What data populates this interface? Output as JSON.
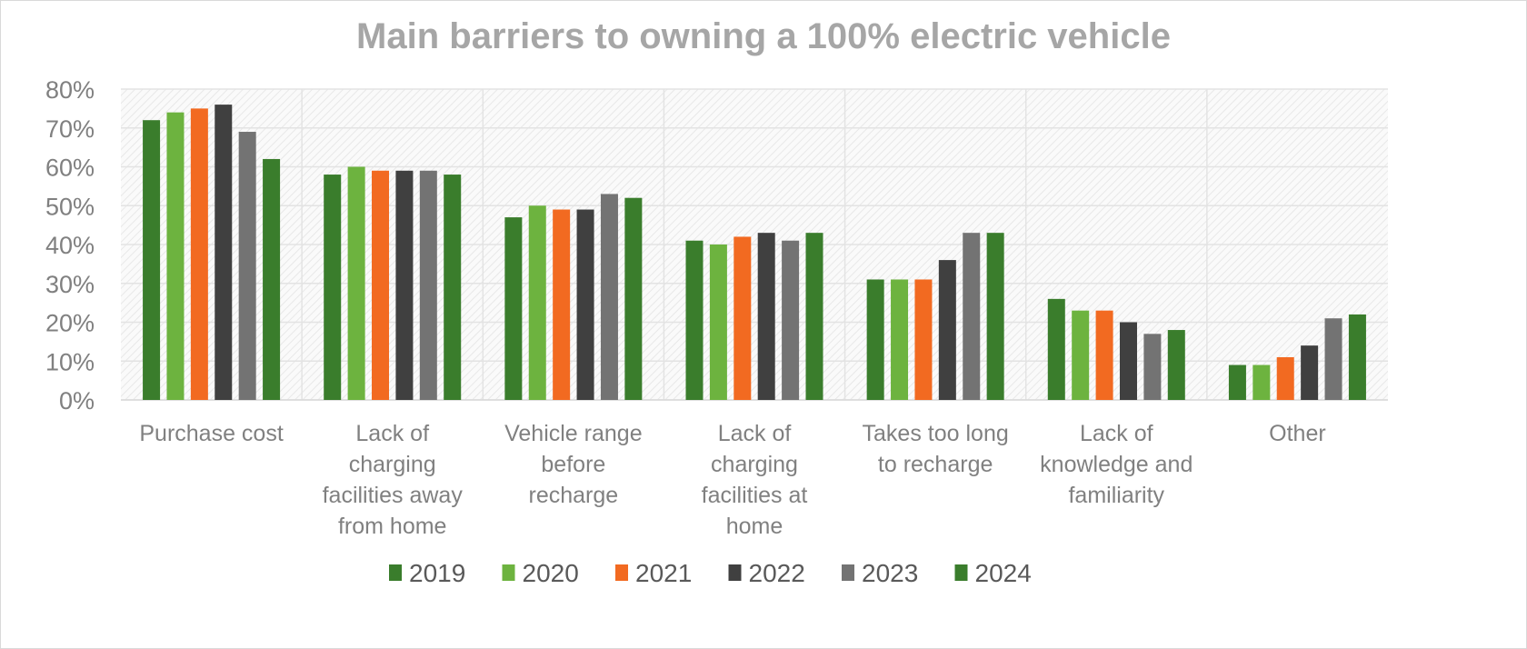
{
  "chart_data": {
    "type": "bar",
    "title": "Main barriers to owning a 100% electric vehicle",
    "xlabel": "",
    "ylabel": "",
    "ylim": [
      0,
      80
    ],
    "yticks": [
      0,
      10,
      20,
      30,
      40,
      50,
      60,
      70,
      80
    ],
    "ytick_labels": [
      "0%",
      "10%",
      "20%",
      "30%",
      "40%",
      "50%",
      "60%",
      "70%",
      "80%"
    ],
    "grid": true,
    "legend_position": "bottom",
    "categories": [
      [
        "Purchase cost"
      ],
      [
        "Lack of",
        "charging",
        "facilities away",
        "from home"
      ],
      [
        "Vehicle range",
        "before",
        "recharge"
      ],
      [
        "Lack of",
        "charging",
        "facilities at",
        "home"
      ],
      [
        "Takes too long",
        "to recharge"
      ],
      [
        "Lack of",
        "knowledge and",
        "familiarity"
      ],
      [
        "Other"
      ]
    ],
    "series": [
      {
        "name": "2019",
        "color": "#3a7d2c",
        "values": [
          72,
          58,
          47,
          41,
          31,
          26,
          9
        ]
      },
      {
        "name": "2020",
        "color": "#6db33f",
        "values": [
          74,
          60,
          50,
          40,
          31,
          23,
          9
        ]
      },
      {
        "name": "2021",
        "color": "#f26a21",
        "values": [
          75,
          59,
          49,
          42,
          31,
          23,
          11
        ]
      },
      {
        "name": "2022",
        "color": "#404040",
        "values": [
          76,
          59,
          49,
          43,
          36,
          20,
          14
        ]
      },
      {
        "name": "2023",
        "color": "#737373",
        "values": [
          69,
          59,
          53,
          41,
          43,
          17,
          21
        ]
      },
      {
        "name": "2024",
        "color": "#3a7d2c",
        "values": [
          62,
          58,
          52,
          43,
          43,
          18,
          22
        ]
      }
    ]
  }
}
